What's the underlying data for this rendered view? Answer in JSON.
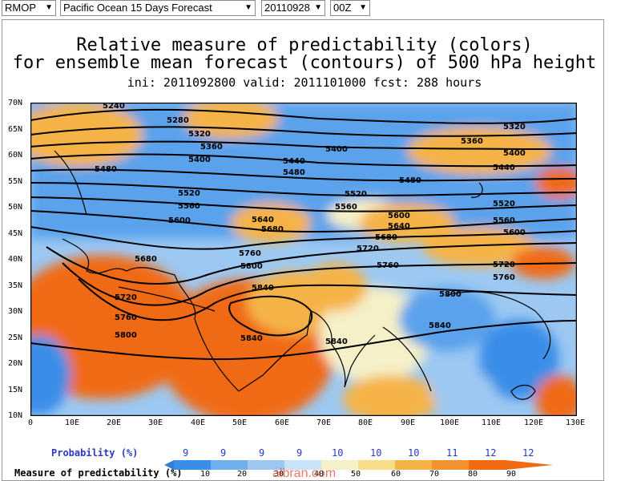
{
  "toolbar": {
    "model": "RMOP",
    "region": "Pacific Ocean 15 Days Forecast",
    "date": "20110928",
    "cycle": "00Z"
  },
  "chart": {
    "title_line1": "Relative measure of predictability (colors)",
    "title_line2": "for ensemble mean forecast (contours) of 500 hPa height",
    "title_line3": "ini: 2011092800 valid: 2011101000 fcst: 288 hours",
    "lat_labels": [
      "70N",
      "65N",
      "60N",
      "55N",
      "50N",
      "45N",
      "40N",
      "35N",
      "30N",
      "25N",
      "20N",
      "15N",
      "10N"
    ],
    "lon_labels": [
      "0",
      "10E",
      "20E",
      "30E",
      "40E",
      "50E",
      "60E",
      "70E",
      "80E",
      "90E",
      "100E",
      "110E",
      "120E",
      "130E"
    ],
    "probability_label": "Probability (%)",
    "probability_values": [
      "9",
      "9",
      "9",
      "9",
      "10",
      "10",
      "10",
      "11",
      "12",
      "12"
    ],
    "predictability_label": "Measure of predictability (%)",
    "colorbar_ticks": [
      "10",
      "20",
      "30",
      "40",
      "50",
      "60",
      "70",
      "80",
      "90"
    ],
    "colors": {
      "low": "#3b8ee8",
      "midlow": "#9cc8f2",
      "mid": "#f5f0c8",
      "midhigh": "#f5b347",
      "high": "#f06a12"
    }
  },
  "chart_data": {
    "type": "heatmap",
    "title": "Relative measure of predictability (colors) for ensemble mean forecast (contours) of 500 hPa height",
    "subtitle": "ini: 2011092800 valid: 2011101000 fcst: 288 hours",
    "x_range": [
      0,
      130
    ],
    "y_range": [
      10,
      70
    ],
    "contour_labels": [
      "5240",
      "5280",
      "5320",
      "5360",
      "5400",
      "5440",
      "5480",
      "5520",
      "5560",
      "5600",
      "5640",
      "5680",
      "5720",
      "5760",
      "5800",
      "5840"
    ],
    "probability": [
      9,
      9,
      9,
      9,
      10,
      10,
      10,
      11,
      12,
      12
    ],
    "colorbar": [
      10,
      20,
      30,
      40,
      50,
      60,
      70,
      80,
      90
    ]
  },
  "watermark": "albran.com"
}
